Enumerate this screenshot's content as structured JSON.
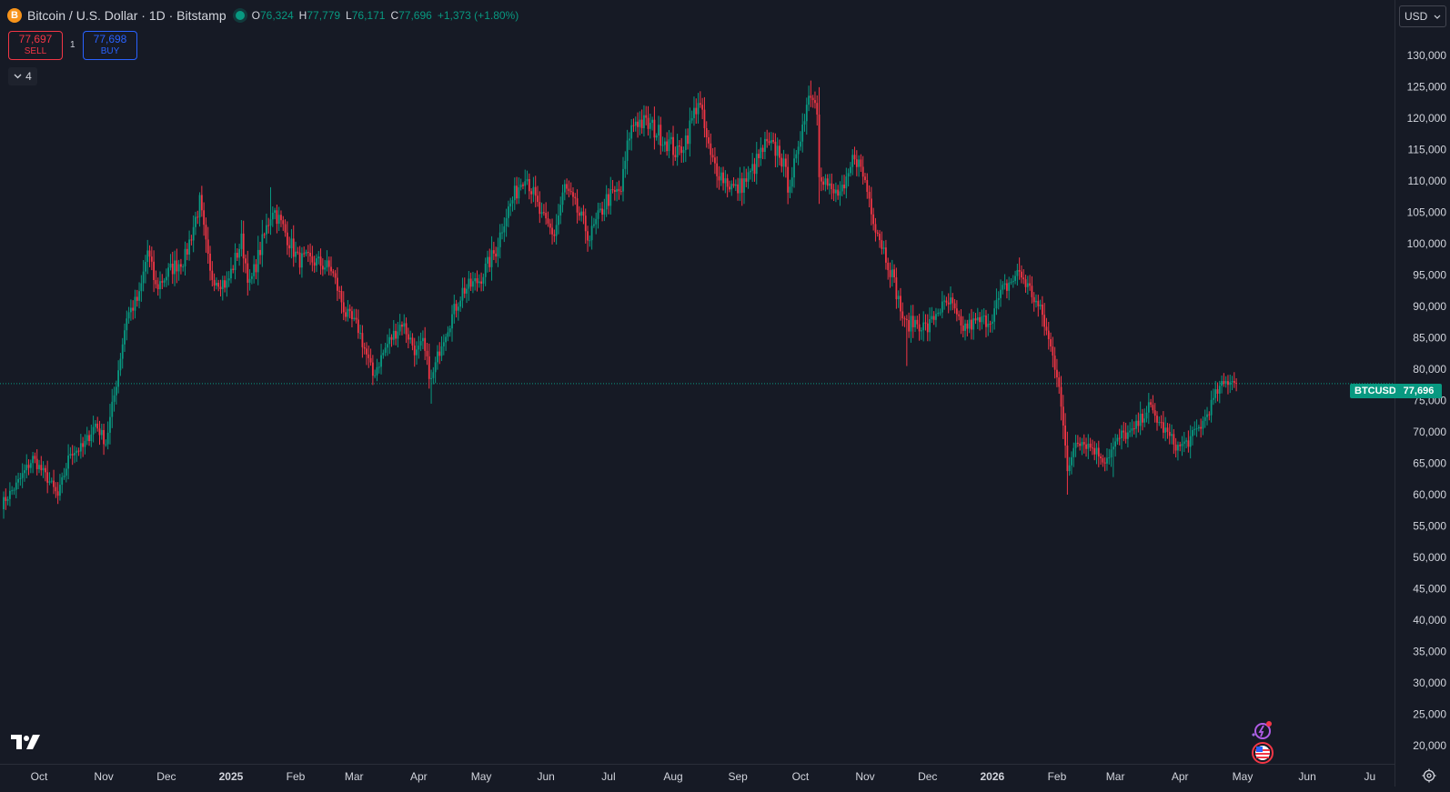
{
  "legend": {
    "coin_glyph": "B",
    "title": "Bitcoin / U.S. Dollar · 1D · Bitstamp",
    "ohlc": {
      "o_key": "O",
      "o": "76,324",
      "h_key": "H",
      "h": "77,779",
      "l_key": "L",
      "l": "76,171",
      "c_key": "C",
      "c": "77,696",
      "change": "+1,373 (+1.80%)"
    }
  },
  "trade": {
    "sell_price": "77,697",
    "sell_label": "SELL",
    "spread": "1",
    "buy_price": "77,698",
    "buy_label": "BUY"
  },
  "indicators_toggle": {
    "count": "4"
  },
  "currency": {
    "value": "USD"
  },
  "last_price": {
    "symbol": "BTCUSD",
    "value": "77,696"
  },
  "colors": {
    "up": "#089981",
    "down": "#f23645",
    "background": "#161a25",
    "grid_text": "#d1d4dc",
    "buy": "#2962ff"
  },
  "icons": [
    "bitcoin-icon",
    "live-status-icon",
    "chevron-down-icon",
    "tradingview-logo-icon",
    "assistant-icon",
    "us-flag-icon",
    "settings-gear-icon"
  ],
  "chart_data": {
    "type": "candlestick",
    "title": "Bitcoin / U.S. Dollar · 1D · Bitstamp",
    "ylim": [
      20000,
      133000
    ],
    "y_ticks": [
      "130,000",
      "125,000",
      "120,000",
      "115,000",
      "110,000",
      "105,000",
      "100,000",
      "95,000",
      "90,000",
      "85,000",
      "80,000",
      "75,000",
      "70,000",
      "65,000",
      "60,000",
      "55,000",
      "50,000",
      "45,000",
      "40,000",
      "35,000",
      "30,000",
      "25,000",
      "20,000"
    ],
    "x_ticks": [
      {
        "label": "Oct",
        "date": "2024-10-01"
      },
      {
        "label": "Nov",
        "date": "2024-11-01"
      },
      {
        "label": "Dec",
        "date": "2024-12-01"
      },
      {
        "label": "2025",
        "date": "2025-01-01",
        "bold": true
      },
      {
        "label": "Feb",
        "date": "2025-02-01"
      },
      {
        "label": "Mar",
        "date": "2025-03-01"
      },
      {
        "label": "Apr",
        "date": "2025-04-01"
      },
      {
        "label": "May",
        "date": "2025-05-01"
      },
      {
        "label": "Jun",
        "date": "2025-06-01"
      },
      {
        "label": "Jul",
        "date": "2025-07-01"
      },
      {
        "label": "Aug",
        "date": "2025-08-01"
      },
      {
        "label": "Sep",
        "date": "2025-09-01"
      },
      {
        "label": "Oct",
        "date": "2025-10-01"
      },
      {
        "label": "Nov",
        "date": "2025-11-01"
      },
      {
        "label": "Dec",
        "date": "2025-12-01"
      },
      {
        "label": "2026",
        "date": "2026-01-01",
        "bold": true
      },
      {
        "label": "Feb",
        "date": "2026-02-01"
      },
      {
        "label": "Mar",
        "date": "2026-03-01"
      },
      {
        "label": "Apr",
        "date": "2026-04-01"
      },
      {
        "label": "May",
        "date": "2026-05-01"
      },
      {
        "label": "Jun",
        "date": "2026-06-01"
      },
      {
        "label": "Ju",
        "date": "2026-07-01"
      }
    ],
    "current_price": 77696,
    "close_path": [
      [
        "2024-09-13",
        58500
      ],
      [
        "2024-09-20",
        61500
      ],
      [
        "2024-09-28",
        65800
      ],
      [
        "2024-10-06",
        62100
      ],
      [
        "2024-10-10",
        59700
      ],
      [
        "2024-10-16",
        66800
      ],
      [
        "2024-10-22",
        67500
      ],
      [
        "2024-10-28",
        71300
      ],
      [
        "2024-11-02",
        68300
      ],
      [
        "2024-11-06",
        75800
      ],
      [
        "2024-11-12",
        88500
      ],
      [
        "2024-11-18",
        91500
      ],
      [
        "2024-11-22",
        98900
      ],
      [
        "2024-11-26",
        93000
      ],
      [
        "2024-12-04",
        96200
      ],
      [
        "2024-12-10",
        97800
      ],
      [
        "2024-12-17",
        106500
      ],
      [
        "2024-12-22",
        95000
      ],
      [
        "2024-12-30",
        93500
      ],
      [
        "2025-01-06",
        100500
      ],
      [
        "2025-01-10",
        93300
      ],
      [
        "2025-01-16",
        100200
      ],
      [
        "2025-01-21",
        105800
      ],
      [
        "2025-01-26",
        102500
      ],
      [
        "2025-02-02",
        97500
      ],
      [
        "2025-02-10",
        97200
      ],
      [
        "2025-02-18",
        96000
      ],
      [
        "2025-02-25",
        88800
      ],
      [
        "2025-03-03",
        86500
      ],
      [
        "2025-03-10",
        79000
      ],
      [
        "2025-03-17",
        84000
      ],
      [
        "2025-03-24",
        87500
      ],
      [
        "2025-03-31",
        82500
      ],
      [
        "2025-04-03",
        84000
      ],
      [
        "2025-04-07",
        78000
      ],
      [
        "2025-04-12",
        84500
      ],
      [
        "2025-04-22",
        92500
      ],
      [
        "2025-04-30",
        94200
      ],
      [
        "2025-05-08",
        99000
      ],
      [
        "2025-05-12",
        104000
      ],
      [
        "2025-05-22",
        111500
      ],
      [
        "2025-05-30",
        104000
      ],
      [
        "2025-06-05",
        101500
      ],
      [
        "2025-06-10",
        109000
      ],
      [
        "2025-06-17",
        104500
      ],
      [
        "2025-06-22",
        101000
      ],
      [
        "2025-06-30",
        107000
      ],
      [
        "2025-07-07",
        108500
      ],
      [
        "2025-07-11",
        117500
      ],
      [
        "2025-07-14",
        119800
      ],
      [
        "2025-07-22",
        118500
      ],
      [
        "2025-07-31",
        115700
      ],
      [
        "2025-08-03",
        114200
      ],
      [
        "2025-08-08",
        117500
      ],
      [
        "2025-08-13",
        123000
      ],
      [
        "2025-08-19",
        113500
      ],
      [
        "2025-08-25",
        110500
      ],
      [
        "2025-08-31",
        108500
      ],
      [
        "2025-09-06",
        110500
      ],
      [
        "2025-09-14",
        115500
      ],
      [
        "2025-09-21",
        114800
      ],
      [
        "2025-09-25",
        109500
      ],
      [
        "2025-09-30",
        114000
      ],
      [
        "2025-10-02",
        120000
      ],
      [
        "2025-10-06",
        124500
      ],
      [
        "2025-10-09",
        121500
      ],
      [
        "2025-10-10",
        112000
      ],
      [
        "2025-10-16",
        108000
      ],
      [
        "2025-10-22",
        108000
      ],
      [
        "2025-10-27",
        114500
      ],
      [
        "2025-11-01",
        110000
      ],
      [
        "2025-11-06",
        103000
      ],
      [
        "2025-11-14",
        95000
      ],
      [
        "2025-11-20",
        87000
      ],
      [
        "2025-11-25",
        87500
      ],
      [
        "2025-12-01",
        86500
      ],
      [
        "2025-12-06",
        89500
      ],
      [
        "2025-12-12",
        90500
      ],
      [
        "2025-12-17",
        86500
      ],
      [
        "2025-12-25",
        87500
      ],
      [
        "2025-12-31",
        88000
      ],
      [
        "2026-01-06",
        92500
      ],
      [
        "2026-01-14",
        95500
      ],
      [
        "2026-01-20",
        92000
      ],
      [
        "2026-01-25",
        88500
      ],
      [
        "2026-01-30",
        82000
      ],
      [
        "2026-02-02",
        78000
      ],
      [
        "2026-02-06",
        63500
      ],
      [
        "2026-02-10",
        69000
      ],
      [
        "2026-02-18",
        67500
      ],
      [
        "2026-02-24",
        65500
      ],
      [
        "2026-03-04",
        69500
      ],
      [
        "2026-03-09",
        69800
      ],
      [
        "2026-03-17",
        74000
      ],
      [
        "2026-03-24",
        70500
      ],
      [
        "2026-03-31",
        67500
      ],
      [
        "2026-04-05",
        68500
      ],
      [
        "2026-04-12",
        71500
      ],
      [
        "2026-04-19",
        76500
      ],
      [
        "2026-04-25",
        78500
      ],
      [
        "2026-04-28",
        77696
      ]
    ],
    "swings": [
      [
        "2024-12-17",
        108200
      ],
      [
        "2025-01-20",
        109000
      ],
      [
        "2025-04-07",
        74500
      ],
      [
        "2025-05-22",
        111800
      ],
      [
        "2025-08-14",
        124300
      ],
      [
        "2025-10-06",
        126000
      ],
      [
        "2025-11-21",
        80500
      ],
      [
        "2026-01-14",
        97800
      ],
      [
        "2026-02-06",
        60000
      ],
      [
        "2026-02-28",
        62800
      ]
    ]
  }
}
